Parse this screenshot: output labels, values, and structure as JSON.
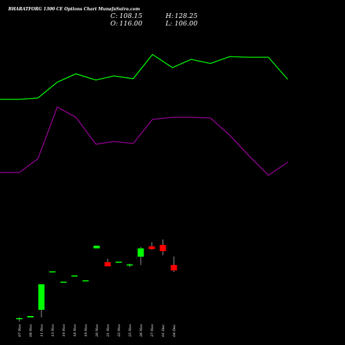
{
  "chart_data": {
    "type": "candlestick",
    "title": "BHARATFORG 1300 CE Options Chart MunafaSutra.com",
    "ohlc": {
      "close_label": "C:",
      "close": "108.15",
      "open_label": "O:",
      "open": "116.00",
      "high_label": "H:",
      "high": "128.25",
      "low_label": "L:",
      "low": "106.00"
    },
    "x": [
      "07 Nov",
      "08 Nov",
      "11 Nov",
      "13 Nov",
      "14 Nov",
      "18 Nov",
      "19 Nov",
      "20 Nov",
      "21 Nov",
      "22 Nov",
      "25 Nov",
      "26 Nov",
      "27 Nov",
      "01 Dec",
      "04 Dec"
    ],
    "candles": [
      {
        "o": 38.0,
        "h": 40.0,
        "l": 34.0,
        "c": 39.0
      },
      {
        "o": 40.0,
        "h": 42.0,
        "l": 40.0,
        "c": 42.0
      },
      {
        "o": 51.0,
        "h": 88.0,
        "l": 40.0,
        "c": 88.0
      },
      {
        "o": 106.0,
        "h": 106.0,
        "l": 106.0,
        "c": 106.0
      },
      {
        "o": 91.0,
        "h": 91.0,
        "l": 91.0,
        "c": 91.0
      },
      {
        "o": 100.0,
        "h": 100.0,
        "l": 100.0,
        "c": 100.0
      },
      {
        "o": 93.0,
        "h": 93.0,
        "l": 93.0,
        "c": 93.0
      },
      {
        "o": 140.0,
        "h": 144.0,
        "l": 140.0,
        "c": 144.0
      },
      {
        "o": 120.0,
        "h": 125.0,
        "l": 114.0,
        "c": 114.0
      },
      {
        "o": 120.0,
        "h": 120.0,
        "l": 120.0,
        "c": 120.0
      },
      {
        "o": 116.0,
        "h": 118.0,
        "l": 113.0,
        "c": 116.0
      },
      {
        "o": 128.0,
        "h": 142.0,
        "l": 116.0,
        "c": 140.0
      },
      {
        "o": 143.0,
        "h": 149.0,
        "l": 138.0,
        "c": 139.0
      },
      {
        "o": 145.0,
        "h": 153.0,
        "l": 130.0,
        "c": 136.0
      },
      {
        "o": 116.0,
        "h": 128.25,
        "l": 106.0,
        "c": 108.15
      }
    ],
    "upper_band": [
      356,
      356,
      358,
      381,
      393,
      384,
      390,
      386,
      421,
      402,
      414,
      408,
      418,
      417,
      417,
      385
    ],
    "lower_band": [
      250,
      250,
      270,
      345,
      330,
      291,
      295,
      292,
      327,
      330,
      330,
      329,
      304,
      274,
      246,
      265
    ],
    "colors": {
      "background": "#000000",
      "up": "#00ff00",
      "down": "#ff0000",
      "upper_band": "#00ff00",
      "lower_band": "#990099",
      "text": "#ffffff"
    },
    "ylim": [
      0,
      460
    ]
  }
}
